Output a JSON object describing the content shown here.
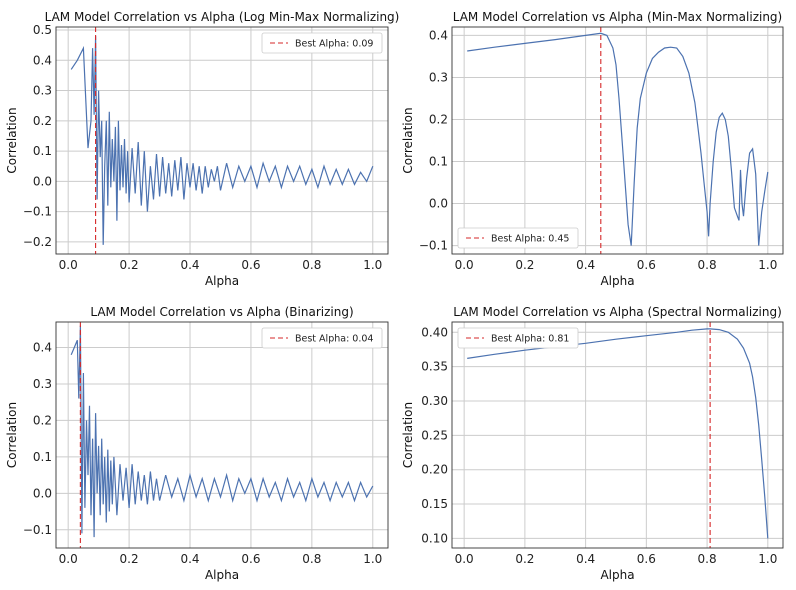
{
  "chart_data": [
    {
      "type": "line",
      "title": "LAM Model Correlation vs Alpha (Log Min-Max Normalizing)",
      "xlabel": "Alpha",
      "ylabel": "Correlation",
      "xlim": [
        -0.04,
        1.05
      ],
      "ylim": [
        -0.24,
        0.51
      ],
      "xticks": [
        0.0,
        0.2,
        0.4,
        0.6,
        0.8,
        1.0
      ],
      "xtick_labels": [
        "0.0",
        "0.2",
        "0.4",
        "0.6",
        "0.8",
        "1.0"
      ],
      "yticks": [
        -0.2,
        -0.1,
        0.0,
        0.1,
        0.2,
        0.3,
        0.4,
        0.5
      ],
      "ytick_labels": [
        "−0.2",
        "−0.1",
        "0.0",
        "0.1",
        "0.2",
        "0.3",
        "0.4",
        "0.5"
      ],
      "grid": true,
      "legend_position": "upper right",
      "best_alpha": 0.09,
      "best_label": "Best Alpha: 0.09",
      "series": [
        {
          "x": [
            0.01,
            0.03,
            0.05,
            0.065,
            0.075,
            0.08,
            0.085,
            0.09,
            0.095,
            0.1,
            0.105,
            0.11,
            0.115,
            0.12,
            0.125,
            0.13,
            0.135,
            0.14,
            0.145,
            0.15,
            0.155,
            0.16,
            0.165,
            0.17,
            0.175,
            0.18,
            0.185,
            0.19,
            0.195,
            0.2,
            0.21,
            0.22,
            0.23,
            0.24,
            0.25,
            0.26,
            0.27,
            0.28,
            0.29,
            0.3,
            0.31,
            0.32,
            0.33,
            0.34,
            0.35,
            0.36,
            0.37,
            0.38,
            0.39,
            0.4,
            0.41,
            0.42,
            0.43,
            0.44,
            0.45,
            0.46,
            0.47,
            0.48,
            0.49,
            0.5,
            0.52,
            0.54,
            0.56,
            0.58,
            0.6,
            0.62,
            0.64,
            0.66,
            0.68,
            0.7,
            0.72,
            0.74,
            0.76,
            0.78,
            0.8,
            0.82,
            0.84,
            0.86,
            0.88,
            0.9,
            0.92,
            0.94,
            0.96,
            0.98,
            1.0
          ],
          "y": [
            0.37,
            0.4,
            0.44,
            0.11,
            0.2,
            0.44,
            0.22,
            0.48,
            -0.06,
            0.3,
            0.08,
            0.2,
            -0.21,
            0.05,
            0.2,
            -0.08,
            0.23,
            -0.02,
            0.14,
            0.0,
            0.18,
            -0.13,
            0.2,
            -0.03,
            0.12,
            -0.02,
            0.14,
            -0.04,
            0.1,
            -0.07,
            0.11,
            -0.04,
            0.13,
            -0.08,
            0.1,
            -0.1,
            0.05,
            -0.06,
            0.09,
            -0.05,
            0.08,
            -0.04,
            0.06,
            -0.05,
            0.07,
            -0.03,
            0.08,
            -0.06,
            0.06,
            -0.02,
            0.06,
            -0.03,
            0.05,
            -0.04,
            0.05,
            -0.02,
            0.04,
            0.0,
            0.05,
            -0.03,
            0.06,
            -0.02,
            0.05,
            0.0,
            0.05,
            -0.02,
            0.06,
            0.0,
            0.05,
            -0.02,
            0.05,
            0.0,
            0.05,
            -0.01,
            0.04,
            -0.02,
            0.05,
            -0.01,
            0.04,
            -0.01,
            0.04,
            -0.01,
            0.03,
            0.0,
            0.05
          ]
        }
      ]
    },
    {
      "type": "line",
      "title": "LAM Model Correlation vs Alpha (Min-Max Normalizing)",
      "xlabel": "Alpha",
      "ylabel": "Correlation",
      "xlim": [
        -0.04,
        1.05
      ],
      "ylim": [
        -0.12,
        0.42
      ],
      "xticks": [
        0.0,
        0.2,
        0.4,
        0.6,
        0.8,
        1.0
      ],
      "xtick_labels": [
        "0.0",
        "0.2",
        "0.4",
        "0.6",
        "0.8",
        "1.0"
      ],
      "yticks": [
        -0.1,
        0.0,
        0.1,
        0.2,
        0.3,
        0.4
      ],
      "ytick_labels": [
        "−0.1",
        "0.0",
        "0.1",
        "0.2",
        "0.3",
        "0.4"
      ],
      "grid": true,
      "legend_position": "lower left",
      "best_alpha": 0.45,
      "best_label": "Best Alpha: 0.45",
      "series": [
        {
          "x": [
            0.01,
            0.1,
            0.2,
            0.3,
            0.4,
            0.45,
            0.47,
            0.49,
            0.5,
            0.51,
            0.52,
            0.53,
            0.54,
            0.55,
            0.56,
            0.57,
            0.58,
            0.6,
            0.62,
            0.64,
            0.66,
            0.68,
            0.7,
            0.72,
            0.74,
            0.76,
            0.77,
            0.78,
            0.79,
            0.8,
            0.805,
            0.81,
            0.82,
            0.83,
            0.84,
            0.85,
            0.86,
            0.87,
            0.88,
            0.89,
            0.9,
            0.905,
            0.91,
            0.915,
            0.92,
            0.93,
            0.94,
            0.95,
            0.96,
            0.97,
            0.98,
            0.99,
            1.0
          ],
          "y": [
            0.363,
            0.372,
            0.381,
            0.39,
            0.4,
            0.405,
            0.4,
            0.37,
            0.33,
            0.25,
            0.15,
            0.05,
            -0.05,
            -0.1,
            0.05,
            0.18,
            0.25,
            0.31,
            0.345,
            0.36,
            0.37,
            0.372,
            0.37,
            0.35,
            0.31,
            0.24,
            0.18,
            0.12,
            0.05,
            -0.02,
            -0.078,
            0.0,
            0.1,
            0.17,
            0.205,
            0.215,
            0.2,
            0.16,
            0.08,
            -0.01,
            -0.03,
            -0.04,
            0.08,
            0.0,
            -0.03,
            0.06,
            0.12,
            0.13,
            0.07,
            -0.1,
            -0.02,
            0.03,
            0.075
          ]
        }
      ]
    },
    {
      "type": "line",
      "title": "LAM Model Correlation vs Alpha (Binarizing)",
      "xlabel": "Alpha",
      "ylabel": "Correlation",
      "xlim": [
        -0.04,
        1.05
      ],
      "ylim": [
        -0.15,
        0.47
      ],
      "xticks": [
        0.0,
        0.2,
        0.4,
        0.6,
        0.8,
        1.0
      ],
      "xtick_labels": [
        "0.0",
        "0.2",
        "0.4",
        "0.6",
        "0.8",
        "1.0"
      ],
      "yticks": [
        -0.1,
        0.0,
        0.1,
        0.2,
        0.3,
        0.4
      ],
      "ytick_labels": [
        "−0.1",
        "0.0",
        "0.1",
        "0.2",
        "0.3",
        "0.4"
      ],
      "grid": true,
      "legend_position": "upper right",
      "best_alpha": 0.04,
      "best_label": "Best Alpha: 0.04",
      "series": [
        {
          "x": [
            0.01,
            0.02,
            0.03,
            0.035,
            0.04,
            0.045,
            0.05,
            0.055,
            0.06,
            0.065,
            0.07,
            0.075,
            0.08,
            0.085,
            0.09,
            0.095,
            0.1,
            0.105,
            0.11,
            0.115,
            0.12,
            0.125,
            0.13,
            0.135,
            0.14,
            0.145,
            0.15,
            0.16,
            0.17,
            0.18,
            0.19,
            0.2,
            0.21,
            0.22,
            0.23,
            0.24,
            0.25,
            0.26,
            0.27,
            0.28,
            0.29,
            0.3,
            0.32,
            0.34,
            0.36,
            0.38,
            0.4,
            0.42,
            0.44,
            0.46,
            0.48,
            0.5,
            0.52,
            0.54,
            0.56,
            0.58,
            0.6,
            0.62,
            0.64,
            0.66,
            0.68,
            0.7,
            0.72,
            0.74,
            0.76,
            0.78,
            0.8,
            0.82,
            0.84,
            0.86,
            0.88,
            0.9,
            0.92,
            0.94,
            0.96,
            0.98,
            1.0
          ],
          "y": [
            0.38,
            0.4,
            0.42,
            0.26,
            0.46,
            -0.11,
            0.33,
            -0.04,
            0.2,
            0.05,
            0.24,
            -0.06,
            0.15,
            -0.12,
            0.22,
            0.0,
            0.13,
            -0.06,
            0.15,
            -0.03,
            0.1,
            -0.08,
            0.12,
            -0.05,
            0.09,
            -0.03,
            0.1,
            -0.06,
            0.08,
            -0.02,
            0.07,
            -0.04,
            0.08,
            -0.03,
            0.06,
            -0.02,
            0.05,
            -0.03,
            0.06,
            -0.02,
            0.04,
            -0.02,
            0.05,
            -0.01,
            0.04,
            -0.02,
            0.05,
            -0.01,
            0.04,
            -0.02,
            0.04,
            -0.01,
            0.05,
            -0.02,
            0.04,
            0.0,
            0.04,
            -0.02,
            0.04,
            -0.01,
            0.03,
            -0.02,
            0.04,
            -0.01,
            0.03,
            -0.02,
            0.04,
            -0.01,
            0.03,
            -0.02,
            0.03,
            -0.01,
            0.03,
            -0.02,
            0.03,
            -0.01,
            0.02
          ]
        }
      ]
    },
    {
      "type": "line",
      "title": "LAM Model Correlation vs Alpha (Spectral Normalizing)",
      "xlabel": "Alpha",
      "ylabel": "Correlation",
      "xlim": [
        -0.04,
        1.05
      ],
      "ylim": [
        0.086,
        0.415
      ],
      "xticks": [
        0.0,
        0.2,
        0.4,
        0.6,
        0.8,
        1.0
      ],
      "xtick_labels": [
        "0.0",
        "0.2",
        "0.4",
        "0.6",
        "0.8",
        "1.0"
      ],
      "yticks": [
        0.1,
        0.15,
        0.2,
        0.25,
        0.3,
        0.35,
        0.4
      ],
      "ytick_labels": [
        "0.10",
        "0.15",
        "0.20",
        "0.25",
        "0.30",
        "0.35",
        "0.40"
      ],
      "grid": true,
      "legend_position": "upper left",
      "best_alpha": 0.81,
      "best_label": "Best Alpha: 0.81",
      "series": [
        {
          "x": [
            0.01,
            0.1,
            0.2,
            0.3,
            0.4,
            0.5,
            0.6,
            0.7,
            0.75,
            0.8,
            0.81,
            0.84,
            0.87,
            0.9,
            0.92,
            0.94,
            0.95,
            0.96,
            0.97,
            0.98,
            0.99,
            1.0
          ],
          "y": [
            0.362,
            0.368,
            0.374,
            0.379,
            0.384,
            0.39,
            0.395,
            0.4,
            0.403,
            0.405,
            0.405,
            0.404,
            0.4,
            0.39,
            0.377,
            0.355,
            0.335,
            0.305,
            0.265,
            0.215,
            0.16,
            0.1
          ]
        }
      ]
    }
  ]
}
